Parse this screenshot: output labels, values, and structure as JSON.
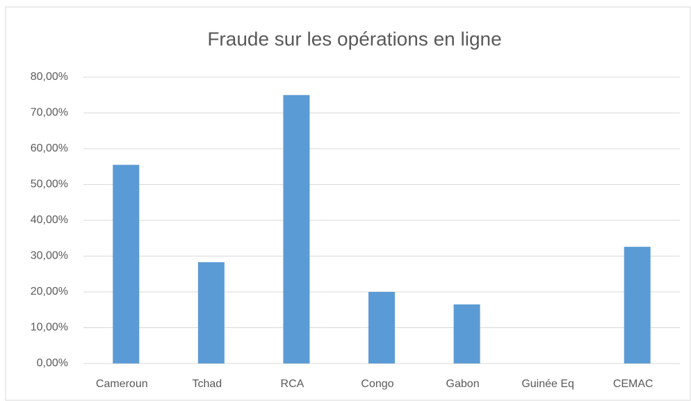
{
  "chart_data": {
    "type": "bar",
    "title": "Fraude sur les opérations en ligne",
    "categories": [
      "Cameroun",
      "Tchad",
      "RCA",
      "Congo",
      "Gabon",
      "Guinée Eq",
      "CEMAC"
    ],
    "values": [
      55.5,
      28.3,
      75,
      20,
      16.5,
      0,
      32.6
    ],
    "color": "#5b9bd5",
    "ylim": [
      0,
      80
    ],
    "yticks": [
      {
        "value": 0,
        "label": "0,00%"
      },
      {
        "value": 10,
        "label": "10,00%"
      },
      {
        "value": 20,
        "label": "20,00%"
      },
      {
        "value": 30,
        "label": "30,00%"
      },
      {
        "value": 40,
        "label": "40,00%"
      },
      {
        "value": 50,
        "label": "50,00%"
      },
      {
        "value": 60,
        "label": "60,00%"
      },
      {
        "value": 70,
        "label": "70,00%"
      },
      {
        "value": 80,
        "label": "80,00%"
      }
    ],
    "grid": true
  }
}
